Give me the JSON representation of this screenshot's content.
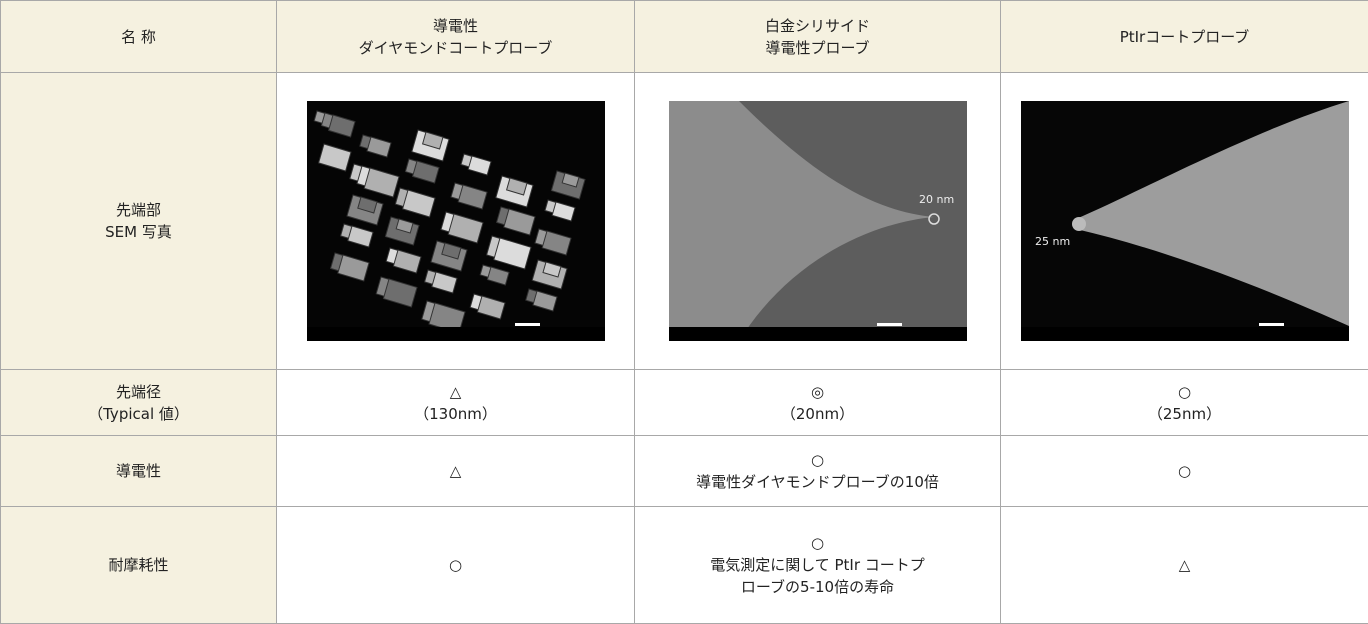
{
  "table": {
    "header": [
      [
        "名 称"
      ],
      [
        "導電性",
        "ダイヤモンドコートプローブ"
      ],
      [
        "白金シリサイド",
        "導電性プローブ"
      ],
      [
        "PtIrコートプローブ"
      ]
    ],
    "image_row": {
      "label": [
        "先端部",
        "SEM 写真"
      ],
      "image_labels": [
        null,
        "20 nm",
        "25 nm"
      ]
    },
    "rows": [
      {
        "label": [
          "先端径",
          "（Typical 値）"
        ],
        "cells": [
          [
            "△",
            "（130nm）"
          ],
          [
            "◎",
            "（20nm）"
          ],
          [
            "○",
            "（25nm）"
          ]
        ]
      },
      {
        "label": [
          "導電性"
        ],
        "cells": [
          [
            "△"
          ],
          [
            "○",
            "導電性ダイヤモンドプローブの10倍"
          ],
          [
            "○"
          ]
        ]
      },
      {
        "label": [
          "耐摩耗性"
        ],
        "cells": [
          [
            "○"
          ],
          [
            "○",
            "電気測定に関して PtIr コートプ",
            "ローブの5-10倍の寿命"
          ],
          [
            "△"
          ]
        ]
      }
    ]
  }
}
